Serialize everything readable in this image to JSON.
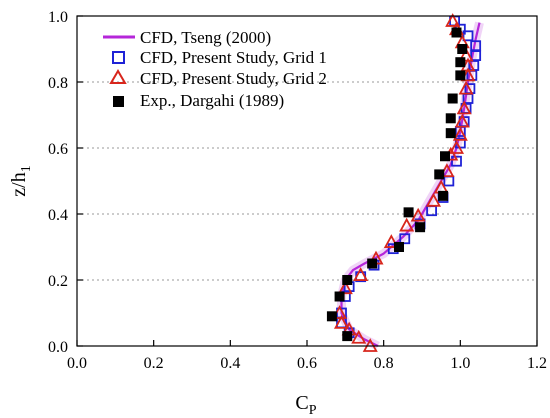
{
  "chart_data": {
    "type": "scatter",
    "xlabel_main": "C",
    "xlabel_sub": "P",
    "ylabel_main": "z/h",
    "ylabel_sub": "1",
    "xlim": [
      0.0,
      1.2
    ],
    "ylim": [
      0.0,
      1.0
    ],
    "xticks": [
      "0.0",
      "0.2",
      "0.4",
      "0.6",
      "0.8",
      "1.0",
      "1.2"
    ],
    "yticks": [
      "0.0",
      "0.2",
      "0.4",
      "0.6",
      "0.8",
      "1.0"
    ],
    "grid": "horizontal-dashed",
    "legend_position": "top-left",
    "series": [
      {
        "name": "CFD, Tseng (2000)",
        "kind": "line",
        "color": "#b526d9",
        "x": [
          0.785,
          0.75,
          0.71,
          0.69,
          0.69,
          0.7,
          0.72,
          0.75,
          0.8,
          0.85,
          0.89,
          0.92,
          0.95,
          0.975,
          0.99,
          1.0,
          1.01,
          1.02,
          1.03,
          1.04,
          1.05
        ],
        "y": [
          0.0,
          0.02,
          0.05,
          0.1,
          0.15,
          0.2,
          0.23,
          0.25,
          0.28,
          0.33,
          0.38,
          0.44,
          0.5,
          0.55,
          0.6,
          0.65,
          0.72,
          0.8,
          0.87,
          0.93,
          0.98
        ]
      },
      {
        "name": "CFD, Present Study, Grid 1",
        "kind": "open-square",
        "color": "#1f22d6",
        "x": [
          0.71,
          0.69,
          0.69,
          0.7,
          0.71,
          0.74,
          0.775,
          0.825,
          0.855,
          0.895,
          0.925,
          0.955,
          0.97,
          0.99,
          1.0,
          1.0,
          1.01,
          1.015,
          1.02,
          1.025,
          1.03,
          1.035,
          1.04,
          1.04,
          1.02,
          1.0,
          0.985
        ],
        "y": [
          0.04,
          0.07,
          0.1,
          0.15,
          0.18,
          0.21,
          0.245,
          0.295,
          0.325,
          0.37,
          0.41,
          0.45,
          0.5,
          0.56,
          0.615,
          0.65,
          0.68,
          0.72,
          0.75,
          0.78,
          0.82,
          0.85,
          0.88,
          0.91,
          0.94,
          0.96,
          0.985
        ]
      },
      {
        "name": "CFD, Present Study, Grid 2",
        "kind": "open-triangle",
        "color": "#d8261c",
        "x": [
          0.765,
          0.735,
          0.71,
          0.69,
          0.685,
          0.7,
          0.74,
          0.78,
          0.82,
          0.86,
          0.89,
          0.93,
          0.95,
          0.965,
          0.975,
          0.99,
          1.0,
          1.005,
          1.01,
          1.015,
          1.02,
          1.02,
          1.015,
          1.005,
          0.99,
          0.98
        ],
        "y": [
          0.0,
          0.025,
          0.05,
          0.07,
          0.1,
          0.175,
          0.215,
          0.265,
          0.315,
          0.365,
          0.395,
          0.44,
          0.48,
          0.53,
          0.58,
          0.6,
          0.64,
          0.68,
          0.72,
          0.78,
          0.82,
          0.85,
          0.88,
          0.92,
          0.96,
          0.985
        ]
      },
      {
        "name": "Exp., Dargahi (1989)",
        "kind": "filled-square",
        "color": "#000000",
        "x": [
          0.705,
          0.665,
          0.685,
          0.705,
          0.77,
          0.84,
          0.865,
          0.895,
          0.945,
          0.955,
          0.96,
          0.975,
          0.975,
          0.98,
          1.0,
          1.0,
          1.005,
          0.99
        ],
        "y": [
          0.03,
          0.09,
          0.15,
          0.2,
          0.25,
          0.3,
          0.405,
          0.36,
          0.52,
          0.455,
          0.575,
          0.645,
          0.69,
          0.75,
          0.82,
          0.86,
          0.9,
          0.95
        ]
      }
    ]
  }
}
